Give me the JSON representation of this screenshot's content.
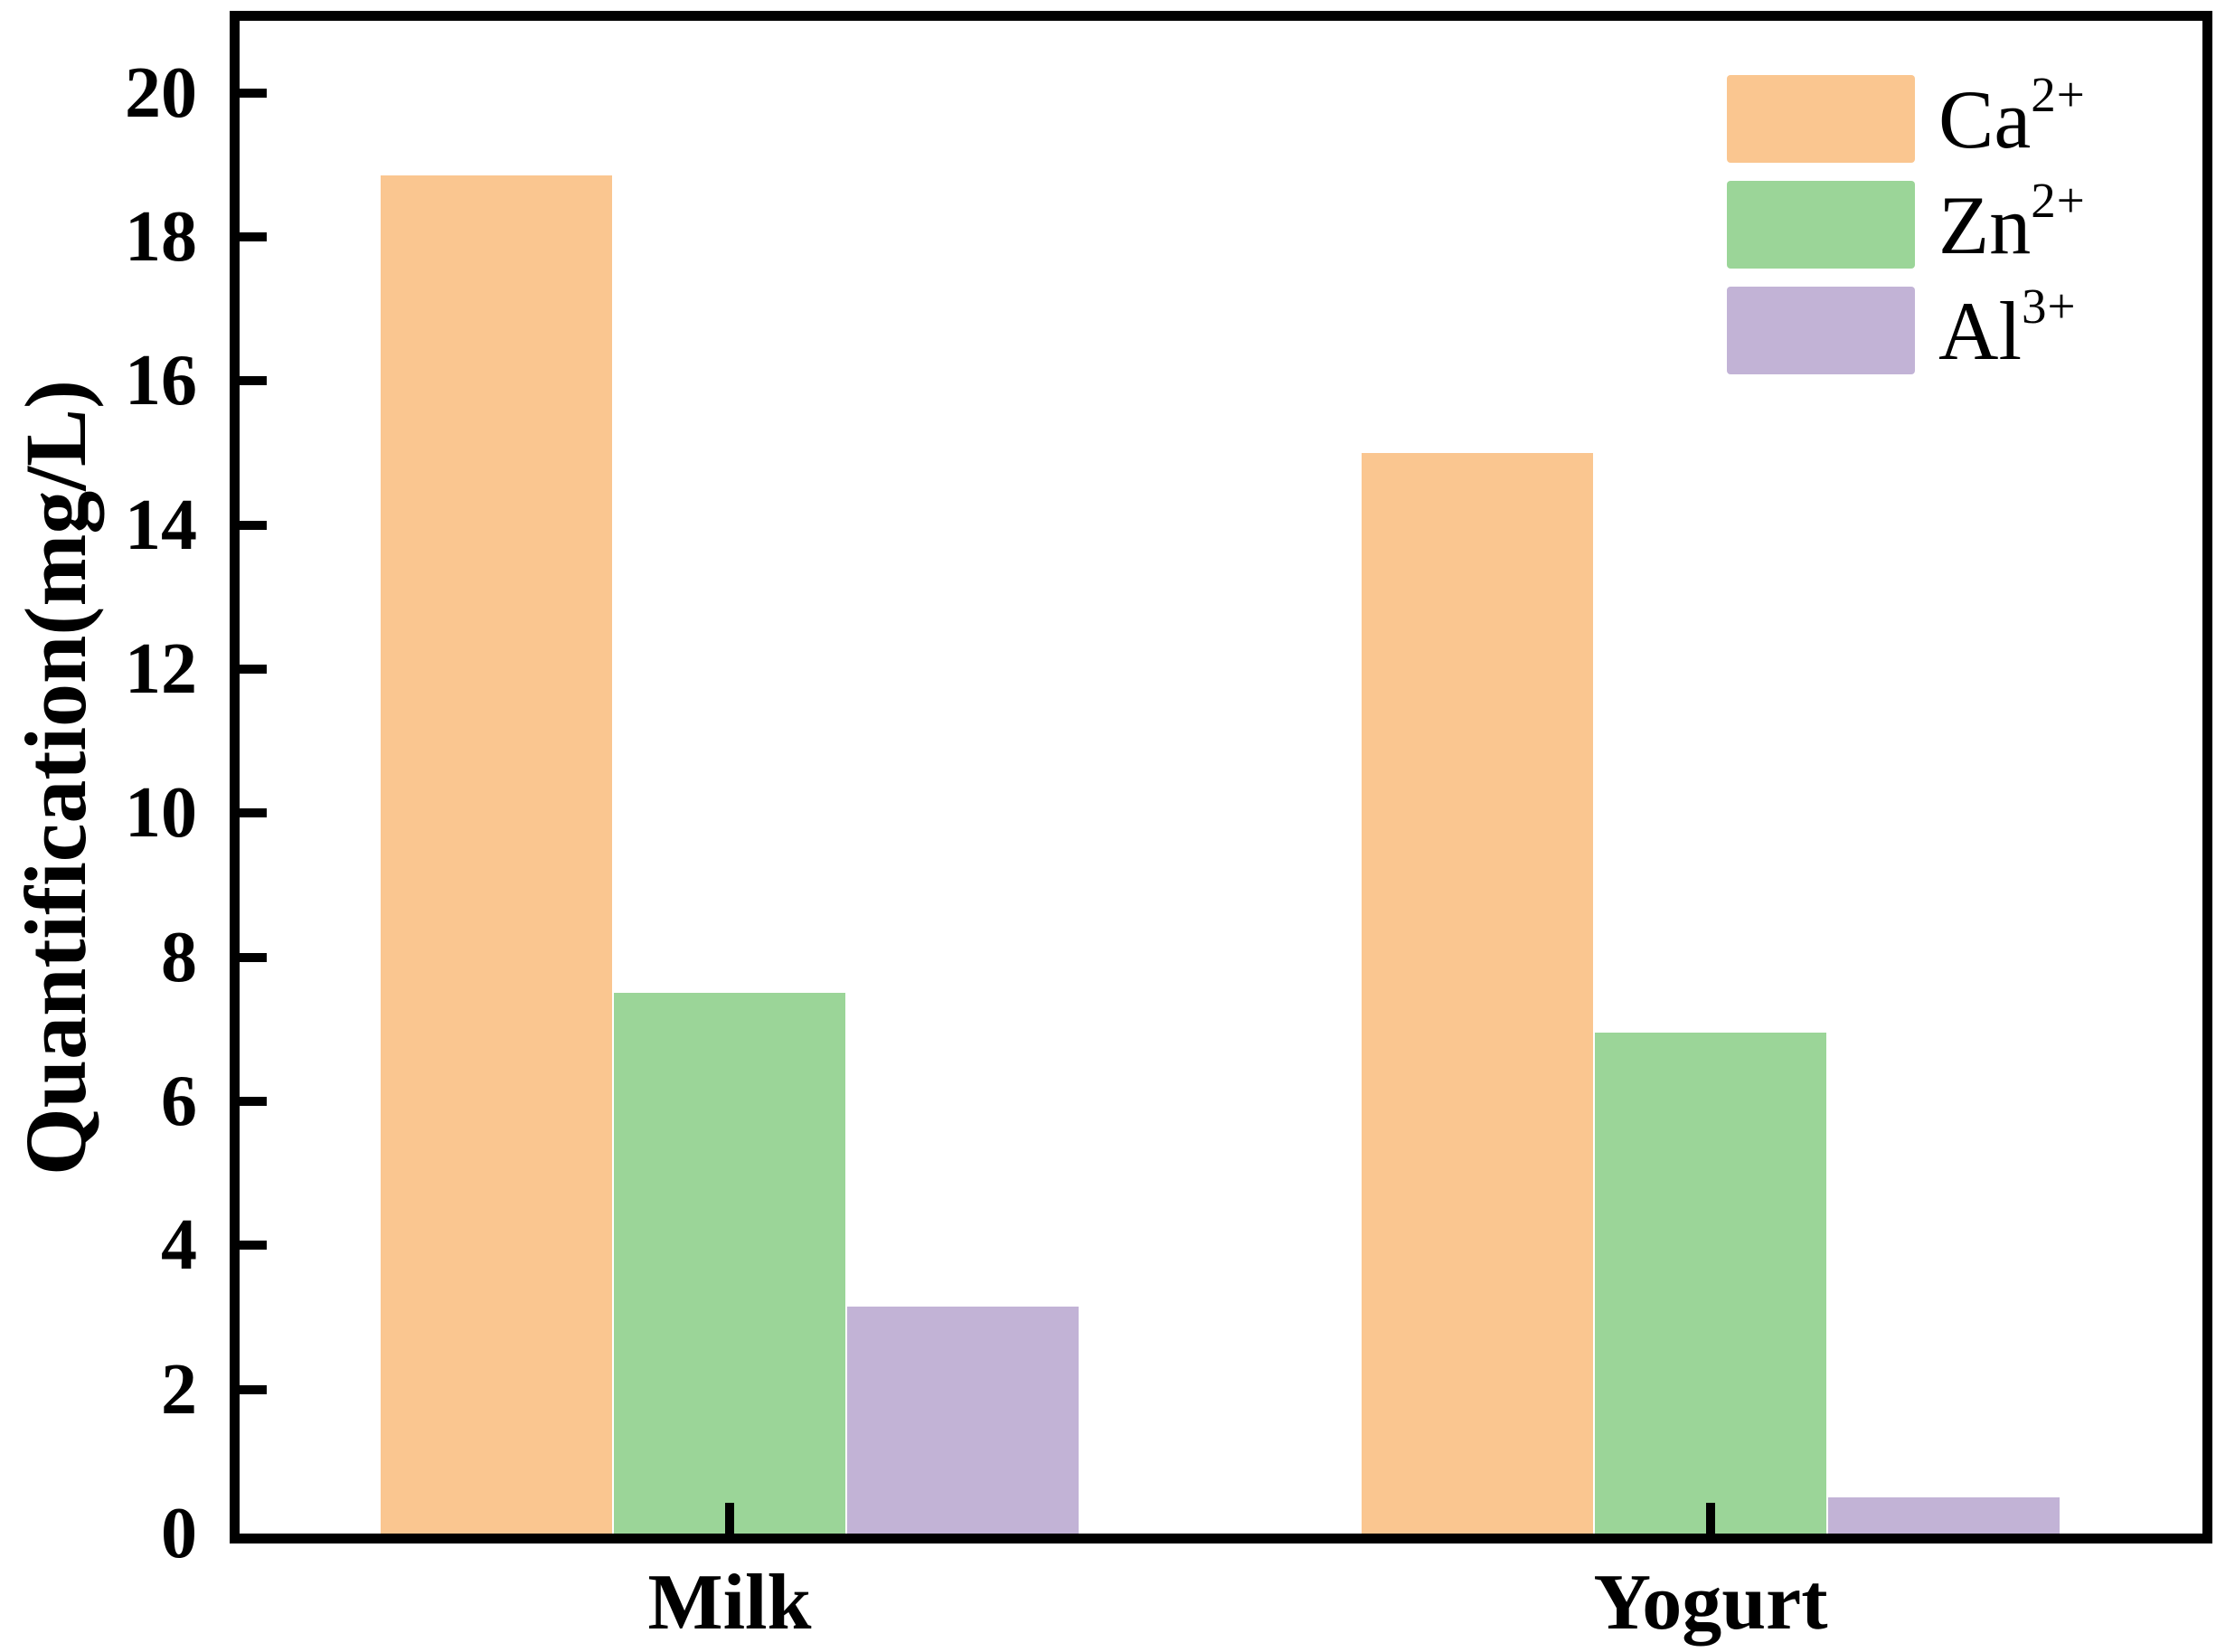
{
  "figure": {
    "background": "#ffffff",
    "text_color": "#000000"
  },
  "chart_data": {
    "type": "bar",
    "title": "",
    "categories": [
      "Milk",
      "Yogurt"
    ],
    "series": [
      {
        "label_base": "Ca",
        "label_sup": "2+",
        "color": "#FAC690",
        "values": [
          18.85,
          15.0
        ]
      },
      {
        "label_base": "Zn",
        "label_sup": "2+",
        "color": "#9BD598",
        "values": [
          7.5,
          6.95
        ]
      },
      {
        "label_base": "Al",
        "label_sup": "3+",
        "color": "#C2B3D6",
        "values": [
          3.15,
          0.5
        ]
      }
    ],
    "xlabel": "",
    "ylabel": "Quantification(mg/L)",
    "ylim": [
      0,
      21
    ],
    "yticks": [
      0,
      2,
      4,
      6,
      8,
      10,
      12,
      14,
      16,
      18,
      20
    ],
    "grid": false,
    "legend_position": "top-right",
    "axis_color": "#000000"
  }
}
